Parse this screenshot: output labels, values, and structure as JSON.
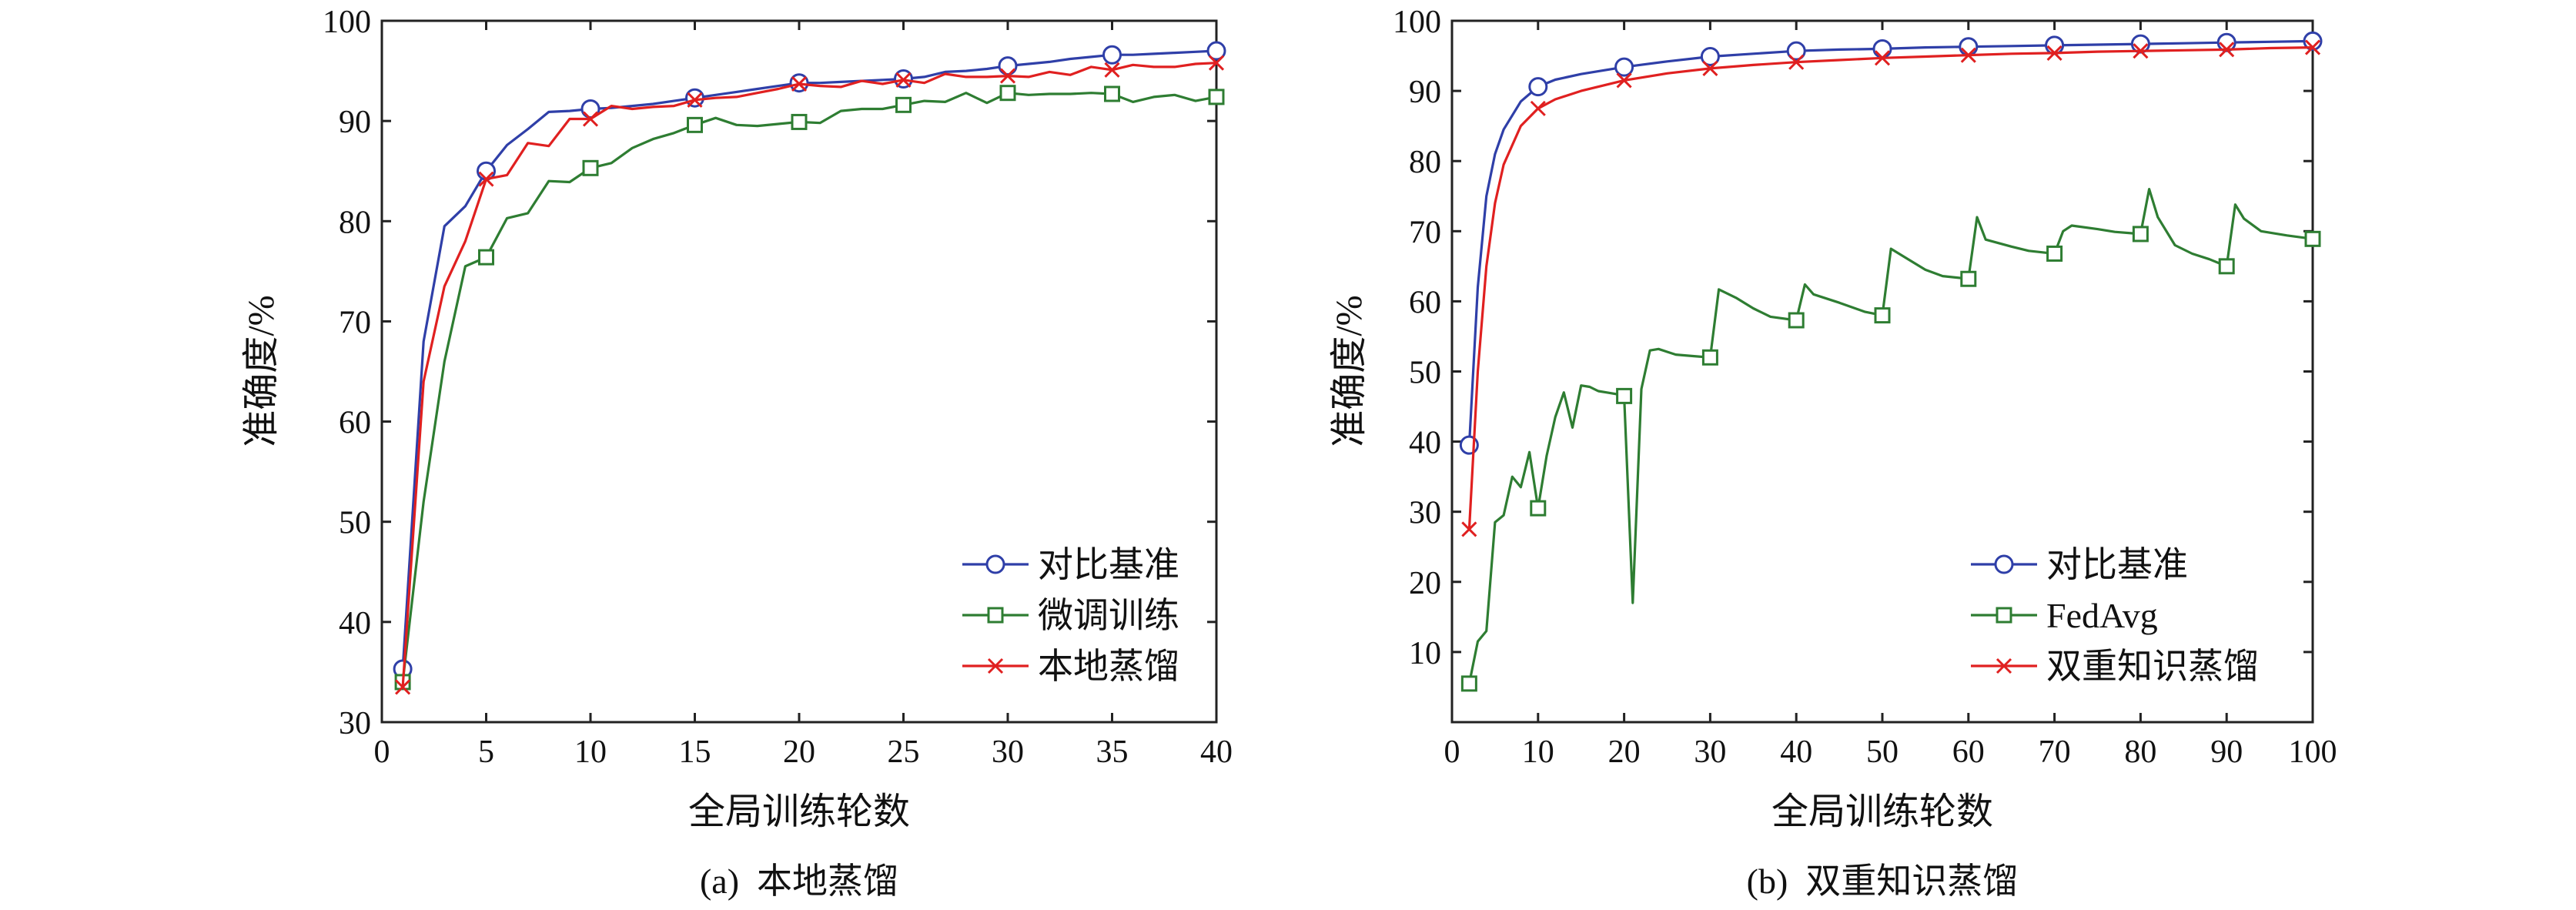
{
  "chart_data": [
    {
      "id": "a",
      "type": "line",
      "caption": "(a)  本地蒸馏",
      "xlabel": "全局训练轮数",
      "ylabel": "准确度/%",
      "xlim": [
        0,
        40
      ],
      "ylim": [
        30,
        100
      ],
      "xticks": [
        0,
        5,
        10,
        15,
        20,
        25,
        30,
        35,
        40
      ],
      "yticks": [
        30,
        40,
        50,
        60,
        70,
        80,
        90,
        100
      ],
      "legend_position": "lower-right",
      "series": [
        {
          "name": "对比基准",
          "color": "#2f3fa8",
          "marker": "circle",
          "x": [
            1,
            2,
            3,
            4,
            5,
            6,
            7,
            8,
            9,
            10,
            11,
            12,
            13,
            14,
            15,
            16,
            17,
            18,
            19,
            20,
            21,
            22,
            23,
            24,
            25,
            26,
            27,
            28,
            29,
            30,
            31,
            32,
            33,
            34,
            35,
            36,
            37,
            38,
            39,
            40
          ],
          "y": [
            35.3,
            68.0,
            79.5,
            81.5,
            85.0,
            87.6,
            89.2,
            90.9,
            91.0,
            91.2,
            91.3,
            91.5,
            91.7,
            92.0,
            92.3,
            92.6,
            92.9,
            93.2,
            93.5,
            93.8,
            93.8,
            93.9,
            94.0,
            94.1,
            94.2,
            94.4,
            94.9,
            95.0,
            95.2,
            95.5,
            95.7,
            95.9,
            96.2,
            96.4,
            96.6,
            96.6,
            96.7,
            96.8,
            96.9,
            97.0
          ],
          "markers": [
            1,
            5,
            10,
            15,
            20,
            25,
            30,
            35,
            40
          ]
        },
        {
          "name": "微调训练",
          "color": "#2e7d32",
          "marker": "square",
          "x": [
            1,
            2,
            3,
            4,
            5,
            6,
            7,
            8,
            9,
            10,
            11,
            12,
            13,
            14,
            15,
            16,
            17,
            18,
            19,
            20,
            21,
            22,
            23,
            24,
            25,
            26,
            27,
            28,
            29,
            30,
            31,
            32,
            33,
            34,
            35,
            36,
            37,
            38,
            39,
            40
          ],
          "y": [
            34.0,
            52.0,
            66.0,
            75.5,
            76.4,
            80.3,
            80.8,
            84.0,
            83.9,
            85.3,
            85.8,
            87.3,
            88.2,
            88.8,
            89.6,
            90.3,
            89.6,
            89.5,
            89.7,
            89.9,
            89.8,
            91.0,
            91.2,
            91.2,
            91.6,
            92.0,
            91.9,
            92.8,
            91.8,
            92.8,
            92.6,
            92.7,
            92.7,
            92.8,
            92.7,
            91.9,
            92.4,
            92.6,
            92.0,
            92.4
          ],
          "markers": [
            1,
            5,
            10,
            15,
            20,
            25,
            30,
            35,
            40
          ]
        },
        {
          "name": "本地蒸馏",
          "color": "#e02020",
          "marker": "x",
          "x": [
            1,
            2,
            3,
            4,
            5,
            6,
            7,
            8,
            9,
            10,
            11,
            12,
            13,
            14,
            15,
            16,
            17,
            18,
            19,
            20,
            21,
            22,
            23,
            24,
            25,
            26,
            27,
            28,
            29,
            30,
            31,
            32,
            33,
            34,
            35,
            36,
            37,
            38,
            39,
            40
          ],
          "y": [
            33.5,
            64.0,
            73.5,
            78.0,
            84.2,
            84.6,
            87.8,
            87.5,
            90.2,
            90.2,
            91.5,
            91.2,
            91.4,
            91.5,
            92.1,
            92.3,
            92.4,
            92.8,
            93.2,
            93.7,
            93.5,
            93.4,
            94.0,
            93.7,
            94.1,
            93.8,
            94.7,
            94.4,
            94.4,
            94.5,
            94.4,
            94.9,
            94.6,
            95.4,
            95.1,
            95.6,
            95.4,
            95.4,
            95.7,
            95.8
          ],
          "markers": [
            1,
            5,
            10,
            15,
            20,
            25,
            30,
            35,
            40
          ]
        }
      ]
    },
    {
      "id": "b",
      "type": "line",
      "caption": "(b)  双重知识蒸馏",
      "xlabel": "全局训练轮数",
      "ylabel": "准确度/%",
      "xlim": [
        0,
        100
      ],
      "ylim": [
        0,
        100
      ],
      "xticks": [
        0,
        10,
        20,
        30,
        40,
        50,
        60,
        70,
        80,
        90,
        100
      ],
      "yticks": [
        10,
        20,
        30,
        40,
        50,
        60,
        70,
        80,
        90,
        100
      ],
      "legend_position": "lower-right",
      "series": [
        {
          "name": "对比基准",
          "color": "#2f3fa8",
          "marker": "circle",
          "x": [
            2,
            3,
            4,
            5,
            6,
            8,
            10,
            12,
            15,
            20,
            25,
            30,
            35,
            40,
            45,
            50,
            55,
            60,
            65,
            70,
            75,
            80,
            85,
            90,
            95,
            100
          ],
          "y": [
            39.5,
            62.0,
            75.0,
            81.0,
            84.5,
            88.5,
            90.6,
            91.6,
            92.4,
            93.4,
            94.2,
            94.9,
            95.3,
            95.7,
            95.9,
            96.0,
            96.2,
            96.3,
            96.4,
            96.5,
            96.6,
            96.7,
            96.8,
            96.9,
            97.0,
            97.1
          ],
          "markers": [
            2,
            10,
            20,
            30,
            40,
            50,
            60,
            70,
            80,
            90,
            100
          ]
        },
        {
          "name": "FedAvg",
          "color": "#2e7d32",
          "marker": "square",
          "x": [
            2,
            3,
            4,
            5,
            6,
            7,
            8,
            9,
            10,
            11,
            12,
            13,
            14,
            15,
            16,
            17,
            18,
            19,
            20,
            21,
            22,
            23,
            24,
            25,
            26,
            28,
            30,
            31,
            33,
            35,
            37,
            40,
            41,
            42,
            45,
            48,
            50,
            51,
            53,
            55,
            57,
            60,
            61,
            62,
            65,
            67,
            70,
            71,
            72,
            75,
            77,
            80,
            81,
            82,
            84,
            86,
            88,
            90,
            91,
            92,
            94,
            97,
            100
          ],
          "y": [
            5.5,
            11.5,
            13.0,
            28.5,
            29.5,
            35.0,
            33.5,
            38.5,
            30.5,
            38.0,
            43.5,
            47.0,
            42.0,
            48.0,
            47.8,
            47.2,
            47.0,
            46.8,
            46.5,
            17.0,
            47.5,
            53.0,
            53.2,
            52.8,
            52.4,
            52.2,
            52.0,
            61.7,
            60.5,
            59.0,
            57.8,
            57.3,
            62.4,
            61.0,
            59.8,
            58.5,
            58.0,
            67.5,
            66.0,
            64.5,
            63.6,
            63.2,
            72.0,
            68.8,
            67.8,
            67.2,
            66.8,
            70.0,
            70.8,
            70.3,
            69.9,
            69.6,
            76.0,
            72.0,
            68.0,
            66.8,
            66.0,
            65.0,
            73.8,
            71.8,
            70.0,
            69.4,
            68.9
          ],
          "markers": [
            2,
            10,
            20,
            30,
            40,
            50,
            60,
            70,
            80,
            90,
            100
          ]
        },
        {
          "name": "双重知识蒸馏",
          "color": "#e02020",
          "marker": "x",
          "x": [
            2,
            3,
            4,
            5,
            6,
            8,
            10,
            12,
            15,
            20,
            25,
            30,
            35,
            40,
            45,
            50,
            55,
            60,
            65,
            70,
            75,
            80,
            85,
            90,
            95,
            100
          ],
          "y": [
            27.5,
            50.0,
            65.0,
            74.0,
            79.5,
            85.0,
            87.5,
            88.8,
            90.0,
            91.5,
            92.5,
            93.2,
            93.7,
            94.1,
            94.4,
            94.7,
            94.9,
            95.1,
            95.3,
            95.4,
            95.6,
            95.7,
            95.8,
            95.9,
            96.1,
            96.2
          ],
          "markers": [
            2,
            10,
            20,
            30,
            40,
            50,
            60,
            70,
            80,
            90,
            100
          ]
        }
      ]
    }
  ]
}
